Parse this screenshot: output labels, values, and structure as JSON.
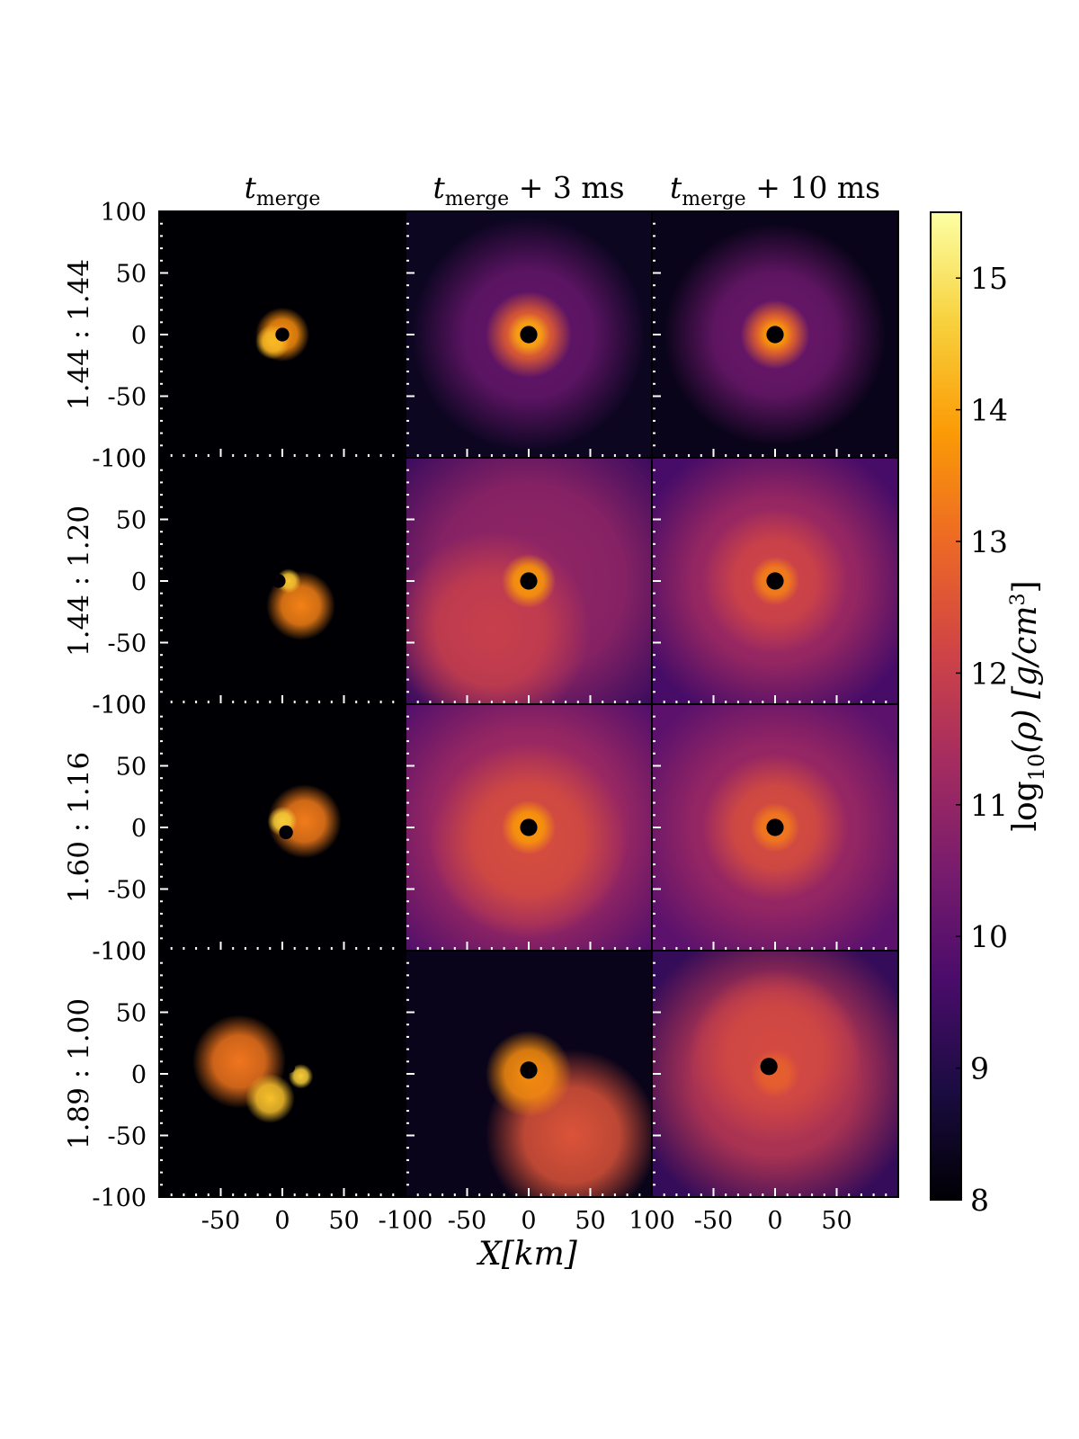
{
  "chart_data": {
    "type": "heatmap",
    "columns": [
      {
        "main": "t",
        "sub": "merge",
        "suffix": ""
      },
      {
        "main": "t",
        "sub": "merge",
        "suffix": " + 3 ms"
      },
      {
        "main": "t",
        "sub": "merge",
        "suffix": " + 10 ms"
      }
    ],
    "rows": [
      "1.44 : 1.44",
      "1.44 : 1.20",
      "1.60 : 1.16",
      "1.89 : 1.00"
    ],
    "y_ticks": [
      "100",
      "50",
      "0",
      "-50",
      "-100"
    ],
    "x_ticks": [
      "-50",
      "0",
      "50",
      "-100",
      "-50",
      "0",
      "50",
      "100",
      "-50",
      "0",
      "50"
    ],
    "xlabel": "X[km]",
    "axis_range_km": [
      -100,
      100
    ],
    "colorbar": {
      "label": "log10(ρ) [g/cm3]",
      "label_main": "log",
      "label_sub": "10",
      "label_rest": "(ρ) [g/cm",
      "label_sup": "3",
      "label_end": "]",
      "min": 8,
      "max": 15.5,
      "ticks": [
        "8",
        "9",
        "10",
        "11",
        "12",
        "13",
        "14",
        "15"
      ],
      "colormap": "inferno",
      "colors": [
        "#000004",
        "#1b0c41",
        "#4a0c6b",
        "#781c6d",
        "#a52c60",
        "#cf4446",
        "#ed6925",
        "#fb9b06",
        "#f7d13d",
        "#fcffa4"
      ]
    },
    "panels": [
      [
        {
          "blobs": [
            {
              "x": 0,
              "y": 0,
              "r": 22,
              "value": 13.6
            },
            {
              "x": -8,
              "y": -6,
              "r": 14,
              "value": 14.3
            }
          ],
          "core": {
            "x": 0,
            "y": 0,
            "r": 4
          },
          "background": 8.0
        },
        {
          "blobs": [
            {
              "x": 0,
              "y": 0,
              "r": 95,
              "value": 10.2
            },
            {
              "x": 0,
              "y": 0,
              "r": 35,
              "value": 12.8
            },
            {
              "x": 0,
              "y": 0,
              "r": 18,
              "value": 14.0
            }
          ],
          "core": {
            "x": 0,
            "y": 0,
            "r": 5
          },
          "background": 8.4
        },
        {
          "blobs": [
            {
              "x": 0,
              "y": 0,
              "r": 90,
              "value": 10.3
            },
            {
              "x": 0,
              "y": 0,
              "r": 28,
              "value": 13.0
            },
            {
              "x": 0,
              "y": 0,
              "r": 15,
              "value": 13.8
            }
          ],
          "core": {
            "x": 0,
            "y": 0,
            "r": 5
          },
          "background": 8.3
        }
      ],
      [
        {
          "blobs": [
            {
              "x": 15,
              "y": -20,
              "r": 28,
              "value": 13.4
            },
            {
              "x": 5,
              "y": 0,
              "r": 10,
              "value": 14.5
            }
          ],
          "core": {
            "x": -3,
            "y": 0,
            "r": 4
          },
          "background": 8.0
        },
        {
          "blobs": [
            {
              "x": 0,
              "y": 0,
              "r": 140,
              "value": 11.0
            },
            {
              "x": -30,
              "y": -40,
              "r": 80,
              "value": 12.0
            },
            {
              "x": 0,
              "y": 0,
              "r": 22,
              "value": 13.8
            }
          ],
          "core": {
            "x": 0,
            "y": 0,
            "r": 5
          },
          "background": 9.4
        },
        {
          "blobs": [
            {
              "x": 0,
              "y": 0,
              "r": 120,
              "value": 11.3
            },
            {
              "x": 0,
              "y": 0,
              "r": 60,
              "value": 12.2
            },
            {
              "x": 0,
              "y": 0,
              "r": 20,
              "value": 13.4
            }
          ],
          "core": {
            "x": 0,
            "y": 0,
            "r": 5
          },
          "background": 9.6
        }
      ],
      [
        {
          "blobs": [
            {
              "x": 18,
              "y": 5,
              "r": 30,
              "value": 13.3
            },
            {
              "x": 0,
              "y": 5,
              "r": 12,
              "value": 14.6
            }
          ],
          "core": {
            "x": 3,
            "y": -4,
            "r": 4
          },
          "background": 8.0
        },
        {
          "blobs": [
            {
              "x": 0,
              "y": 0,
              "r": 140,
              "value": 11.3
            },
            {
              "x": 0,
              "y": -10,
              "r": 80,
              "value": 12.4
            },
            {
              "x": 0,
              "y": 0,
              "r": 22,
              "value": 13.8
            }
          ],
          "core": {
            "x": 0,
            "y": 0,
            "r": 5
          },
          "background": 9.8
        },
        {
          "blobs": [
            {
              "x": 0,
              "y": 0,
              "r": 120,
              "value": 11.2
            },
            {
              "x": 0,
              "y": 0,
              "r": 60,
              "value": 12.4
            },
            {
              "x": 0,
              "y": 0,
              "r": 20,
              "value": 13.3
            }
          ],
          "core": {
            "x": 0,
            "y": 0,
            "r": 5
          },
          "background": 10.0
        }
      ],
      [
        {
          "blobs": [
            {
              "x": -35,
              "y": 10,
              "r": 38,
              "value": 13.2
            },
            {
              "x": -10,
              "y": -20,
              "r": 20,
              "value": 14.4
            },
            {
              "x": 15,
              "y": -2,
              "r": 10,
              "value": 14.6
            }
          ],
          "core": {
            "x": 6,
            "y": 5,
            "r": 3
          },
          "background": 8.0
        },
        {
          "blobs": [
            {
              "x": 35,
              "y": -50,
              "r": 70,
              "value": 12.5
            },
            {
              "x": 0,
              "y": 0,
              "r": 35,
              "value": 13.6
            }
          ],
          "core": {
            "x": 0,
            "y": 3,
            "r": 5
          },
          "background": 8.3
        },
        {
          "blobs": [
            {
              "x": 0,
              "y": 0,
              "r": 120,
              "value": 11.8
            },
            {
              "x": 0,
              "y": 15,
              "r": 70,
              "value": 12.3
            },
            {
              "x": 0,
              "y": 0,
              "r": 20,
              "value": 12.8
            }
          ],
          "core": {
            "x": -5,
            "y": 6,
            "r": 5
          },
          "background": 9.3
        }
      ]
    ]
  }
}
